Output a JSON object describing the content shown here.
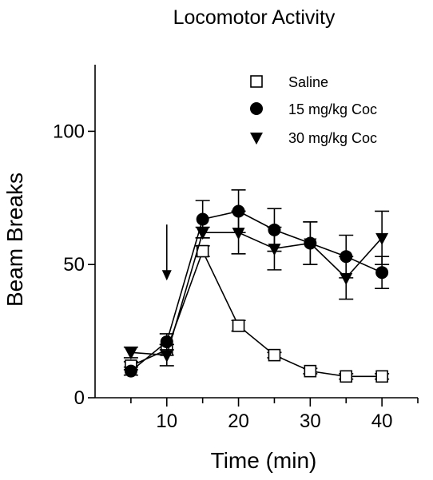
{
  "chart_data": {
    "type": "line",
    "title": "Locomotor Activity",
    "xlabel": "Time (min)",
    "ylabel": "Beam Breaks",
    "x": [
      5,
      10,
      15,
      20,
      25,
      30,
      35,
      40
    ],
    "xlim": [
      0,
      45
    ],
    "ylim": [
      0,
      125
    ],
    "x_ticks": [
      10,
      20,
      30,
      40
    ],
    "y_ticks": [
      0,
      50,
      100
    ],
    "x_minor_ticks": [
      5,
      15,
      25,
      35,
      45
    ],
    "grid": false,
    "legend_position": "top-right",
    "annotations": [
      {
        "type": "arrow",
        "x": 10,
        "y_from": 65,
        "y_to": 44
      }
    ],
    "series": [
      {
        "name": "Saline",
        "marker": "open-square",
        "color": "#000000",
        "values": [
          12,
          18,
          55,
          27,
          16,
          10,
          8,
          8
        ],
        "errors": [
          1.5,
          2,
          2,
          2,
          1,
          1,
          1,
          1
        ]
      },
      {
        "name": "15 mg/kg Coc",
        "marker": "filled-circle",
        "color": "#000000",
        "values": [
          10,
          21,
          67,
          70,
          63,
          58,
          53,
          47
        ],
        "errors": [
          1.5,
          3,
          7,
          8,
          8,
          8,
          8,
          6
        ]
      },
      {
        "name": "30 mg/kg Coc",
        "marker": "filled-triangle-down",
        "color": "#000000",
        "values": [
          17,
          16,
          62,
          62,
          56,
          58,
          45,
          60
        ],
        "errors": [
          2,
          4,
          2,
          8,
          8,
          8,
          8,
          10
        ]
      }
    ]
  }
}
